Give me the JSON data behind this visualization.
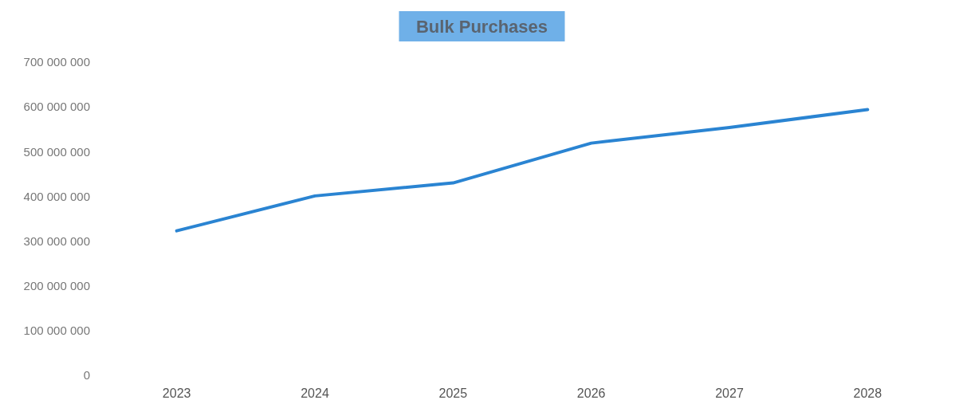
{
  "chart_data": {
    "type": "line",
    "title": "Bulk Purchases",
    "categories": [
      "2023",
      "2024",
      "2025",
      "2026",
      "2027",
      "2028"
    ],
    "series": [
      {
        "color": "#2a84d2",
        "values": [
          323000000,
          401000000,
          430000000,
          519000000,
          554000000,
          594000000
        ]
      }
    ],
    "ylim": [
      0,
      700000000
    ],
    "yticks": [
      {
        "value": 0,
        "label": "0"
      },
      {
        "value": 100000000,
        "label": "100 000 000"
      },
      {
        "value": 200000000,
        "label": "200 000 000"
      },
      {
        "value": 300000000,
        "label": "300 000 000"
      },
      {
        "value": 400000000,
        "label": "400 000 000"
      },
      {
        "value": 500000000,
        "label": "500 000 000"
      },
      {
        "value": 600000000,
        "label": "600 000 000"
      },
      {
        "value": 700000000,
        "label": "700 000 000"
      }
    ],
    "marker": "none",
    "line_style": "solid"
  }
}
